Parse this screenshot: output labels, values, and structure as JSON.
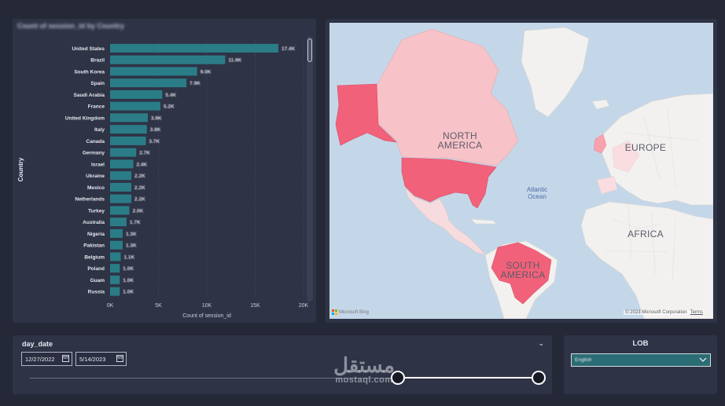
{
  "bar_chart": {
    "title": "Count of session_id by Country",
    "y_axis_label": "Country",
    "x_axis_label": "Count of session_id",
    "ticks": [
      "0K",
      "5K",
      "10K",
      "15K",
      "20K"
    ]
  },
  "chart_data": {
    "type": "bar",
    "orientation": "horizontal",
    "title": "Count of session_id by Country",
    "xlabel": "Count of session_id",
    "ylabel": "Country",
    "xlim": [
      0,
      20000
    ],
    "bar_color": "#2a7d87",
    "categories": [
      "United States",
      "Brazil",
      "South Korea",
      "Spain",
      "Saudi Arabia",
      "France",
      "United Kingdom",
      "Italy",
      "Canada",
      "Germany",
      "Israel",
      "Ukraine",
      "Mexico",
      "Netherlands",
      "Turkey",
      "Australia",
      "Nigeria",
      "Pakistan",
      "Belgium",
      "Poland",
      "Guam",
      "Russia"
    ],
    "values": [
      17400,
      11900,
      9000,
      7900,
      5400,
      5200,
      3900,
      3800,
      3700,
      2700,
      2400,
      2200,
      2200,
      2200,
      2000,
      1700,
      1300,
      1300,
      1100,
      1000,
      1000,
      1000
    ],
    "data_labels": [
      "17.4K",
      "11.9K",
      "9.0K",
      "7.9K",
      "5.4K",
      "5.2K",
      "3.9K",
      "3.8K",
      "3.7K",
      "2.7K",
      "2.4K",
      "2.2K",
      "2.2K",
      "2.2K",
      "2.0K",
      "1.7K",
      "1.3K",
      "1.3K",
      "1.1K",
      "1.0K",
      "1.0K",
      "1.0K"
    ]
  },
  "map": {
    "labels": {
      "north_america": "NORTH\nAMERICA",
      "europe": "EUROPE",
      "africa": "AFRICA",
      "south_america": "SOUTH\nAMERICA",
      "ocean": "Atlantic\nOcean"
    },
    "provider": "Microsoft Bing",
    "copyright": "© 2023 Microsoft Corporation",
    "terms": "Terms",
    "highlight_strong": "#f2617a",
    "highlight_light": "#f7c3c8",
    "land_color": "#f2f1ef",
    "water_color": "#c4d7e9"
  },
  "date_slicer": {
    "title": "day_date",
    "start": "12/27/2022",
    "end": "5/14/2023",
    "range_start_fraction": 0.72,
    "range_end_fraction": 1.0
  },
  "lob_slicer": {
    "title": "LOB",
    "selected": "English"
  },
  "watermark": {
    "arabic": "مستقل",
    "latin": "mostaql.com"
  }
}
